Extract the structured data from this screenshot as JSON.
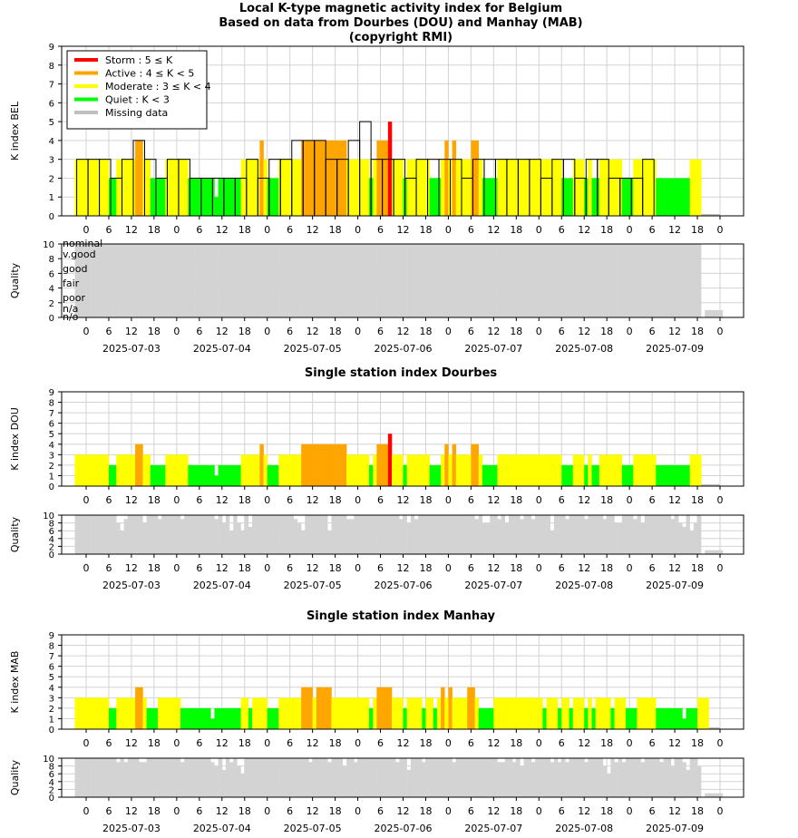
{
  "header": {
    "title_line1": "Local K-type magnetic activity index for Belgium",
    "title_line2": "Based on data from Dourbes (DOU) and Manhay (MAB)",
    "title_line3": "(copyright RMI)"
  },
  "colors": {
    "storm": "#ff0000",
    "active": "#ffa500",
    "moderate": "#ffff00",
    "quiet": "#00ff00",
    "missing": "#c0c0c0",
    "quality_bar": "#d3d3d3",
    "grid": "#d3d3d3"
  },
  "legend": {
    "items": [
      {
        "label": "Storm : 5 ≤ K",
        "color": "#ff0000"
      },
      {
        "label": "Active : 4 ≤ K < 5",
        "color": "#ffa500"
      },
      {
        "label": "Moderate : 3 ≤ K < 4",
        "color": "#ffff00"
      },
      {
        "label": "Quiet : K < 3",
        "color": "#00ff00"
      },
      {
        "label": "Missing data",
        "color": "#c0c0c0"
      }
    ]
  },
  "quality_labels": [
    "nominal",
    "v.good",
    "good",
    "fair",
    "poor",
    "n/a",
    "n/o"
  ],
  "chart_data": [
    {
      "id": "bel",
      "type": "bar",
      "title": "",
      "ylabel": "K index BEL",
      "ylim": [
        0,
        9
      ],
      "x_tick_labels": [
        "0",
        "6",
        "12",
        "18",
        "0",
        "6",
        "12",
        "18",
        "0",
        "6",
        "12",
        "18",
        "0",
        "6",
        "12",
        "18",
        "0",
        "6",
        "12",
        "18",
        "0",
        "6",
        "12",
        "18",
        "0",
        "6",
        "12",
        "18",
        "0"
      ],
      "date_labels": [],
      "grid": true,
      "legend_placement": "top-left",
      "three_hour_K": [
        3,
        3,
        3,
        2,
        3,
        4,
        3,
        2,
        3,
        3,
        2,
        2,
        2,
        2,
        2,
        3,
        2,
        3,
        3,
        4,
        4,
        4,
        3,
        3,
        4,
        5,
        3,
        3,
        3,
        2,
        3,
        3,
        3,
        3,
        2,
        3,
        3,
        3,
        3,
        3,
        3,
        2,
        3,
        3,
        2,
        3,
        3,
        2,
        2,
        2,
        3
      ],
      "one_hour_K": [
        3,
        3,
        3,
        3,
        3,
        3,
        3,
        3,
        3,
        2,
        2,
        3,
        3,
        3,
        3,
        3,
        4,
        4,
        3,
        3,
        2,
        2,
        2,
        2,
        3,
        3,
        3,
        3,
        3,
        3,
        2,
        2,
        2,
        2,
        2,
        2,
        2,
        1,
        2,
        2,
        2,
        2,
        2,
        2,
        3,
        3,
        3,
        3,
        3,
        4,
        3,
        2,
        2,
        2,
        3,
        3,
        3,
        3,
        3,
        3,
        4,
        4,
        4,
        4,
        4,
        4,
        4,
        4,
        4,
        4,
        4,
        4,
        3,
        3,
        3,
        3,
        3,
        3,
        2,
        3,
        4,
        4,
        4,
        5,
        3,
        3,
        3,
        2,
        3,
        3,
        3,
        3,
        3,
        3,
        2,
        2,
        2,
        3,
        4,
        3,
        4,
        3,
        3,
        3,
        3,
        4,
        4,
        3,
        2,
        2,
        2,
        2,
        3,
        3,
        3,
        3,
        3,
        3,
        3,
        3,
        3,
        3,
        3,
        3,
        3,
        3,
        3,
        3,
        3,
        2,
        2,
        2,
        3,
        3,
        3,
        2,
        3,
        2,
        2,
        3,
        3,
        3,
        3,
        3,
        3,
        2,
        2,
        2,
        3,
        3,
        3,
        3,
        3,
        3,
        2,
        2,
        2,
        2,
        2,
        2,
        2,
        2,
        2,
        3,
        3,
        3
      ]
    },
    {
      "id": "bel-quality",
      "type": "bar",
      "title": "",
      "ylabel": "Quality",
      "ylim": [
        0,
        10
      ],
      "x_tick_labels": [
        "0",
        "6",
        "12",
        "18",
        "0",
        "6",
        "12",
        "18",
        "0",
        "6",
        "12",
        "18",
        "0",
        "6",
        "12",
        "18",
        "0",
        "6",
        "12",
        "18",
        "0",
        "6",
        "12",
        "18",
        "0",
        "6",
        "12",
        "18",
        "0"
      ],
      "date_labels": [
        "2025-07-03",
        "2025-07-04",
        "2025-07-05",
        "2025-07-06",
        "2025-07-07",
        "2025-07-08",
        "2025-07-09"
      ],
      "value": 10,
      "missing_value": 1
    },
    {
      "id": "dou",
      "type": "bar",
      "title": "Single station index Dourbes",
      "ylabel": "K index DOU",
      "ylim": [
        0,
        9
      ],
      "x_tick_labels": [
        "0",
        "6",
        "12",
        "18",
        "0",
        "6",
        "12",
        "18",
        "0",
        "6",
        "12",
        "18",
        "0",
        "6",
        "12",
        "18",
        "0",
        "6",
        "12",
        "18",
        "0",
        "6",
        "12",
        "18",
        "0",
        "6",
        "12",
        "18",
        "0"
      ],
      "date_labels": [],
      "one_hour_K": [
        3,
        3,
        3,
        3,
        3,
        3,
        3,
        3,
        3,
        2,
        2,
        3,
        3,
        3,
        3,
        3,
        4,
        4,
        3,
        3,
        2,
        2,
        2,
        2,
        3,
        3,
        3,
        3,
        3,
        3,
        2,
        2,
        2,
        2,
        2,
        2,
        2,
        1,
        2,
        2,
        2,
        2,
        2,
        2,
        3,
        3,
        3,
        3,
        3,
        4,
        3,
        2,
        2,
        2,
        3,
        3,
        3,
        3,
        3,
        3,
        4,
        4,
        4,
        4,
        4,
        4,
        4,
        4,
        4,
        4,
        4,
        4,
        3,
        3,
        3,
        3,
        3,
        3,
        2,
        3,
        4,
        4,
        4,
        5,
        3,
        3,
        3,
        2,
        3,
        3,
        3,
        3,
        3,
        3,
        2,
        2,
        2,
        3,
        4,
        3,
        4,
        3,
        3,
        3,
        3,
        4,
        4,
        3,
        2,
        2,
        2,
        2,
        3,
        3,
        3,
        3,
        3,
        3,
        3,
        3,
        3,
        3,
        3,
        3,
        3,
        3,
        3,
        3,
        3,
        2,
        2,
        2,
        3,
        3,
        3,
        2,
        3,
        2,
        2,
        3,
        3,
        3,
        3,
        3,
        3,
        2,
        2,
        2,
        3,
        3,
        3,
        3,
        3,
        3,
        2,
        2,
        2,
        2,
        2,
        2,
        2,
        2,
        2,
        3,
        3,
        3
      ]
    },
    {
      "id": "dou-quality",
      "type": "bar",
      "title": "",
      "ylabel": "Quality",
      "ylim": [
        0,
        10
      ],
      "x_tick_labels": [
        "0",
        "6",
        "12",
        "18",
        "0",
        "6",
        "12",
        "18",
        "0",
        "6",
        "12",
        "18",
        "0",
        "6",
        "12",
        "18",
        "0",
        "6",
        "12",
        "18",
        "0",
        "6",
        "12",
        "18",
        "0",
        "6",
        "12",
        "18",
        "0"
      ],
      "date_labels": [
        "2025-07-03",
        "2025-07-04",
        "2025-07-05",
        "2025-07-06",
        "2025-07-07",
        "2025-07-08",
        "2025-07-09"
      ],
      "dips": [
        [
          11,
          8
        ],
        [
          12,
          6
        ],
        [
          13,
          9
        ],
        [
          18,
          8
        ],
        [
          22,
          9
        ],
        [
          28,
          9
        ],
        [
          37,
          9
        ],
        [
          39,
          8
        ],
        [
          41,
          6
        ],
        [
          43,
          8
        ],
        [
          44,
          6
        ],
        [
          46,
          7
        ],
        [
          58,
          9
        ],
        [
          59,
          8
        ],
        [
          60,
          6
        ],
        [
          67,
          6
        ],
        [
          72,
          9
        ],
        [
          73,
          9
        ],
        [
          86,
          9
        ],
        [
          88,
          8
        ],
        [
          90,
          9
        ],
        [
          106,
          9
        ],
        [
          108,
          8
        ],
        [
          109,
          8
        ],
        [
          112,
          9
        ],
        [
          114,
          8
        ],
        [
          118,
          9
        ],
        [
          121,
          9
        ],
        [
          126,
          6
        ],
        [
          130,
          9
        ],
        [
          135,
          9
        ],
        [
          140,
          9
        ],
        [
          143,
          8
        ],
        [
          144,
          8
        ],
        [
          148,
          9
        ],
        [
          150,
          8
        ],
        [
          158,
          9
        ],
        [
          160,
          8
        ],
        [
          161,
          7
        ],
        [
          163,
          6
        ],
        [
          164,
          8
        ],
        [
          167,
          9
        ],
        [
          172,
          9
        ],
        [
          175,
          8
        ]
      ]
    },
    {
      "id": "mab",
      "type": "bar",
      "title": "Single station index Manhay",
      "ylabel": "K index MAB",
      "ylim": [
        0,
        9
      ],
      "x_tick_labels": [
        "0",
        "6",
        "12",
        "18",
        "0",
        "6",
        "12",
        "18",
        "0",
        "6",
        "12",
        "18",
        "0",
        "6",
        "12",
        "18",
        "0",
        "6",
        "12",
        "18",
        "0",
        "6",
        "12",
        "18",
        "0",
        "6",
        "12",
        "18",
        "0"
      ],
      "date_labels": [],
      "one_hour_K": [
        3,
        3,
        3,
        3,
        3,
        3,
        3,
        3,
        3,
        2,
        2,
        3,
        3,
        3,
        3,
        3,
        4,
        4,
        3,
        2,
        2,
        2,
        3,
        3,
        3,
        3,
        3,
        3,
        2,
        2,
        2,
        2,
        2,
        2,
        2,
        2,
        1,
        2,
        2,
        2,
        2,
        2,
        2,
        2,
        3,
        3,
        2,
        3,
        3,
        3,
        3,
        2,
        2,
        2,
        3,
        3,
        3,
        3,
        3,
        3,
        4,
        4,
        4,
        3,
        4,
        4,
        4,
        4,
        3,
        3,
        3,
        3,
        3,
        3,
        3,
        3,
        3,
        3,
        2,
        3,
        4,
        4,
        4,
        4,
        3,
        3,
        3,
        2,
        3,
        3,
        3,
        3,
        2,
        3,
        3,
        2,
        3,
        4,
        3,
        4,
        3,
        3,
        3,
        3,
        4,
        4,
        3,
        2,
        2,
        2,
        2,
        3,
        3,
        3,
        3,
        3,
        3,
        3,
        3,
        3,
        3,
        3,
        3,
        3,
        2,
        3,
        3,
        3,
        2,
        3,
        3,
        2,
        3,
        3,
        3,
        2,
        3,
        2,
        3,
        3,
        3,
        3,
        2,
        3,
        3,
        3,
        2,
        2,
        2,
        3,
        3,
        3,
        3,
        3,
        2,
        2,
        2,
        2,
        2,
        2,
        2,
        1,
        2,
        2,
        2,
        3,
        3,
        3
      ]
    },
    {
      "id": "mab-quality",
      "type": "bar",
      "title": "",
      "ylabel": "Quality",
      "ylim": [
        0,
        10
      ],
      "x_tick_labels": [
        "0",
        "6",
        "12",
        "18",
        "0",
        "6",
        "12",
        "18",
        "0",
        "6",
        "12",
        "18",
        "0",
        "6",
        "12",
        "18",
        "0",
        "6",
        "12",
        "18",
        "0",
        "6",
        "12",
        "18",
        "0",
        "6",
        "12",
        "18",
        "0"
      ],
      "date_labels": [
        "2025-07-03",
        "2025-07-04",
        "2025-07-05",
        "2025-07-06",
        "2025-07-07",
        "2025-07-08",
        "2025-07-09"
      ],
      "dips": [
        [
          11,
          9
        ],
        [
          13,
          9
        ],
        [
          17,
          9
        ],
        [
          18,
          9
        ],
        [
          28,
          9
        ],
        [
          36,
          9
        ],
        [
          37,
          8
        ],
        [
          39,
          7
        ],
        [
          41,
          9
        ],
        [
          43,
          8
        ],
        [
          44,
          6
        ],
        [
          62,
          9
        ],
        [
          67,
          9
        ],
        [
          71,
          8
        ],
        [
          74,
          9
        ],
        [
          85,
          9
        ],
        [
          88,
          7
        ],
        [
          92,
          9
        ],
        [
          100,
          9
        ],
        [
          112,
          9
        ],
        [
          113,
          9
        ],
        [
          116,
          9
        ],
        [
          118,
          8
        ],
        [
          121,
          9
        ],
        [
          126,
          9
        ],
        [
          128,
          9
        ],
        [
          130,
          9
        ],
        [
          135,
          9
        ],
        [
          140,
          8
        ],
        [
          141,
          6
        ],
        [
          143,
          9
        ],
        [
          145,
          9
        ],
        [
          150,
          9
        ],
        [
          155,
          9
        ],
        [
          158,
          8
        ],
        [
          161,
          9
        ],
        [
          162,
          7
        ],
        [
          165,
          8
        ],
        [
          167,
          9
        ],
        [
          169,
          9
        ],
        [
          171,
          9
        ]
      ]
    }
  ]
}
